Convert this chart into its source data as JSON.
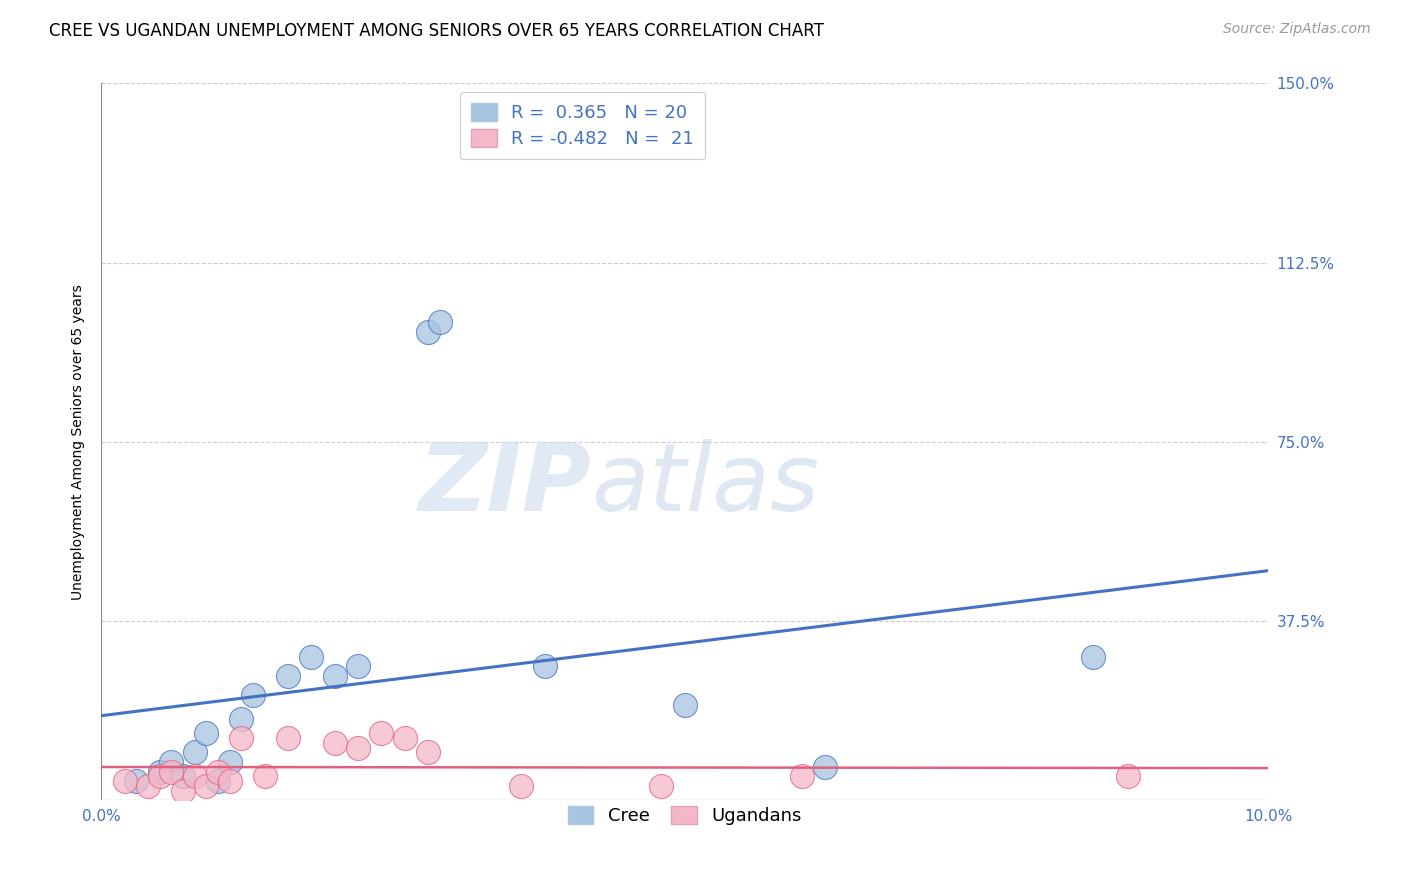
{
  "title": "CREE VS UGANDAN UNEMPLOYMENT AMONG SENIORS OVER 65 YEARS CORRELATION CHART",
  "source": "Source: ZipAtlas.com",
  "ylabel": "Unemployment Among Seniors over 65 years",
  "xlim": [
    0.0,
    0.1
  ],
  "ylim": [
    0.0,
    1.5
  ],
  "yticks": [
    0.0,
    0.375,
    0.75,
    1.125,
    1.5
  ],
  "ytick_labels": [
    "",
    "37.5%",
    "75.0%",
    "112.5%",
    "150.0%"
  ],
  "xticks": [
    0.0,
    0.025,
    0.05,
    0.075,
    0.1
  ],
  "xtick_labels": [
    "0.0%",
    "",
    "",
    "",
    "10.0%"
  ],
  "cree_R": 0.365,
  "cree_N": 20,
  "ugandan_R": -0.482,
  "ugandan_N": 21,
  "cree_color": "#a8c4e0",
  "ugandan_color": "#f4b8c8",
  "cree_line_color": "#4472c4",
  "ugandan_line_color": "#e06080",
  "background_color": "#ffffff",
  "watermark_zip": "ZIP",
  "watermark_atlas": "atlas",
  "cree_x": [
    0.003,
    0.005,
    0.006,
    0.007,
    0.008,
    0.009,
    0.01,
    0.011,
    0.012,
    0.013,
    0.016,
    0.018,
    0.02,
    0.022,
    0.028,
    0.029,
    0.038,
    0.05,
    0.062,
    0.085
  ],
  "cree_y": [
    0.04,
    0.06,
    0.08,
    0.05,
    0.1,
    0.14,
    0.04,
    0.08,
    0.17,
    0.22,
    0.26,
    0.3,
    0.26,
    0.28,
    0.98,
    1.0,
    0.28,
    0.2,
    0.07,
    0.3
  ],
  "ugandan_x": [
    0.002,
    0.004,
    0.005,
    0.006,
    0.007,
    0.008,
    0.009,
    0.01,
    0.011,
    0.012,
    0.014,
    0.016,
    0.02,
    0.022,
    0.024,
    0.026,
    0.028,
    0.036,
    0.048,
    0.06,
    0.088
  ],
  "ugandan_y": [
    0.04,
    0.03,
    0.05,
    0.06,
    0.02,
    0.05,
    0.03,
    0.06,
    0.04,
    0.13,
    0.05,
    0.13,
    0.12,
    0.11,
    0.14,
    0.13,
    0.1,
    0.03,
    0.03,
    0.05,
    0.05
  ],
  "title_fontsize": 12,
  "source_fontsize": 10,
  "legend_fontsize": 13,
  "axis_label_fontsize": 10,
  "tick_label_fontsize": 11
}
